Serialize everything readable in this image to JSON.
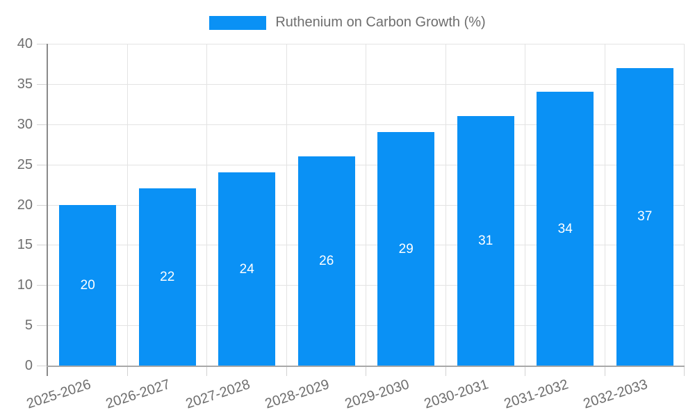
{
  "legend": {
    "label": "Ruthenium on Carbon Growth (%)",
    "swatch_color": "#0a91f5"
  },
  "chart_data": {
    "type": "bar",
    "title": "Ruthenium on Carbon Growth (%)",
    "categories": [
      "2025-2026",
      "2026-2027",
      "2027-2028",
      "2028-2029",
      "2029-2030",
      "2030-2031",
      "2031-2032",
      "2032-2033"
    ],
    "series": [
      {
        "name": "Ruthenium on Carbon Growth (%)",
        "values": [
          20,
          22,
          24,
          26,
          29,
          31,
          34,
          37
        ]
      }
    ],
    "values": [
      20,
      22,
      24,
      26,
      29,
      31,
      34,
      37
    ],
    "bar_labels": [
      "20",
      "22",
      "24",
      "26",
      "29",
      "31",
      "34",
      "37"
    ],
    "xlabel": "",
    "ylabel": "",
    "ylim": [
      0,
      40
    ],
    "y_ticks": [
      0,
      5,
      10,
      15,
      20,
      25,
      30,
      35,
      40
    ],
    "grid": true,
    "legend_position": "top-center",
    "x_tick_rotation_deg": -18,
    "bar_color": "#0a91f5",
    "bar_label_color": "#ffffff"
  },
  "style": {
    "text_color": "#6e6e6e",
    "grid_color": "#e3e3e3",
    "tick_color": "#d2d2d2",
    "y_axis_color": "#8a8a8a",
    "x_axis_color": "#a8a8a8",
    "background": "#ffffff"
  }
}
